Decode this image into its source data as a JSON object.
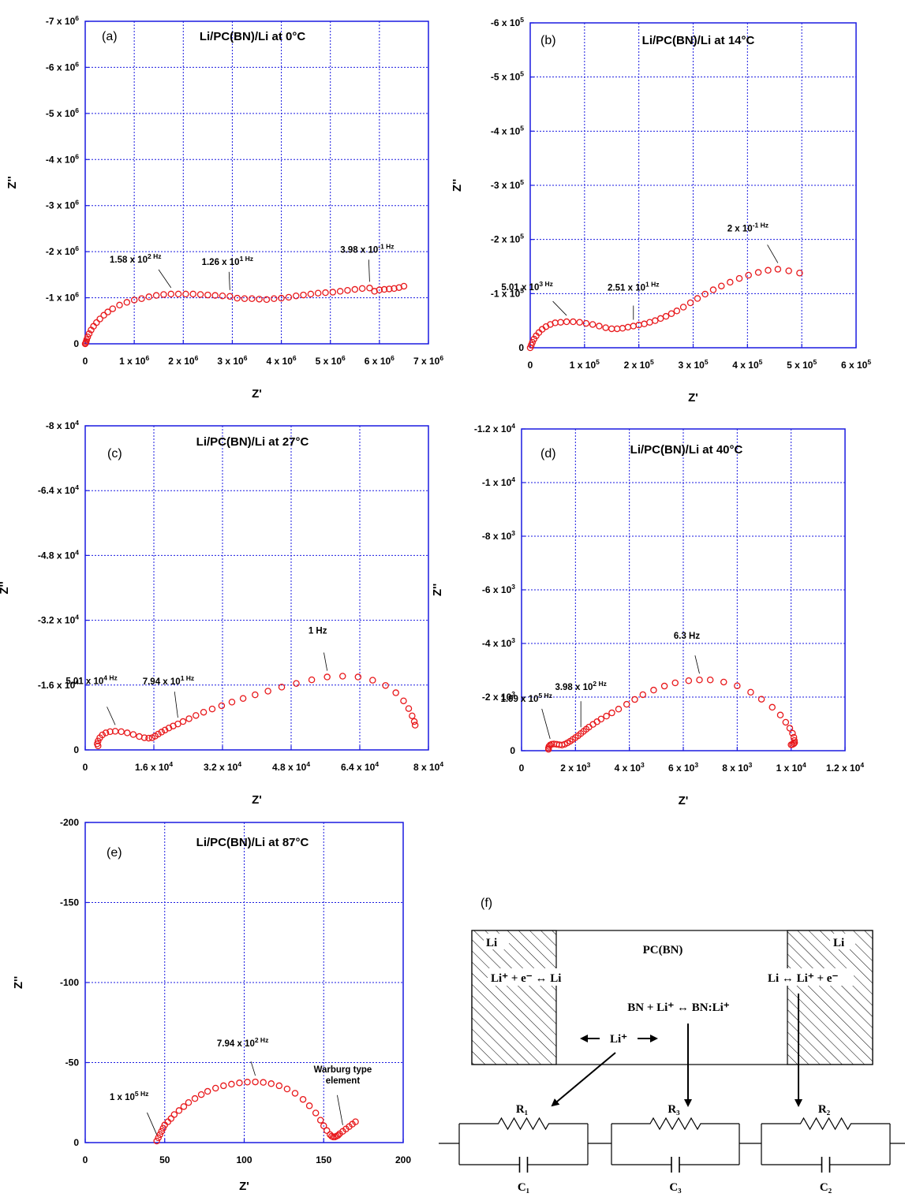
{
  "chart_data": [
    {
      "type": "scatter",
      "panel_label": "(a)",
      "title": "Li/PC(BN)/Li at 0°C",
      "xlabel": "Z'",
      "ylabel": "Z''",
      "xlim": [
        0,
        7000000
      ],
      "ylim": [
        0,
        -7000000
      ],
      "grid": true,
      "x_ticks": [
        0,
        1000000,
        2000000,
        3000000,
        4000000,
        5000000,
        6000000,
        7000000
      ],
      "x_tick_labels": [
        "0",
        "1 x 10^6",
        "2 x 10^6",
        "3 x 10^6",
        "4 x 10^6",
        "5 x 10^6",
        "6 x 10^6",
        "7 x 10^6"
      ],
      "y_ticks": [
        0,
        -1000000,
        -2000000,
        -3000000,
        -4000000,
        -5000000,
        -6000000,
        -7000000
      ],
      "y_tick_labels": [
        "0",
        "-1 x 10^6",
        "-2 x 10^6",
        "-3 x 10^6",
        "-4 x 10^6",
        "-5 x 10^6",
        "-6 x 10^6",
        "-7 x 10^6"
      ],
      "series": [
        {
          "marker": "open-circle",
          "color": "#e8191c",
          "x": [
            0,
            10000,
            20000,
            30000,
            50000,
            80000,
            120000,
            170000,
            230000,
            300000,
            380000,
            460000,
            560000,
            700000,
            850000,
            1000000,
            1150000,
            1300000,
            1450000,
            1600000,
            1750000,
            1900000,
            2050000,
            2200000,
            2350000,
            2500000,
            2650000,
            2800000,
            2950000,
            3100000,
            3250000,
            3400000,
            3550000,
            3700000,
            3850000,
            4000000,
            4150000,
            4300000,
            4450000,
            4600000,
            4750000,
            4900000,
            5050000,
            5200000,
            5350000,
            5500000,
            5650000,
            5800000,
            5900000,
            6000000,
            6100000,
            6200000,
            6300000,
            6400000,
            6500000
          ],
          "y": [
            0,
            -20000,
            -50000,
            -90000,
            -150000,
            -220000,
            -300000,
            -380000,
            -460000,
            -540000,
            -620000,
            -690000,
            -760000,
            -840000,
            -900000,
            -950000,
            -980000,
            -1020000,
            -1050000,
            -1070000,
            -1080000,
            -1080000,
            -1080000,
            -1080000,
            -1070000,
            -1060000,
            -1050000,
            -1040000,
            -1030000,
            -990000,
            -980000,
            -980000,
            -970000,
            -960000,
            -980000,
            -990000,
            -1010000,
            -1040000,
            -1060000,
            -1080000,
            -1100000,
            -1110000,
            -1120000,
            -1140000,
            -1160000,
            -1180000,
            -1200000,
            -1210000,
            -1140000,
            -1170000,
            -1180000,
            -1190000,
            -1200000,
            -1220000,
            -1250000
          ]
        }
      ],
      "annotations": [
        {
          "text": "1.58 x 10^2 Hz",
          "x": 1700000
        },
        {
          "text": "1.26 x 10^1 Hz",
          "x": 2900000
        },
        {
          "text": "3.98 x 10^-1 Hz",
          "x": 5800000
        }
      ]
    },
    {
      "type": "scatter",
      "panel_label": "(b)",
      "title": "Li/PC(BN)/Li at 14°C",
      "xlabel": "Z'",
      "ylabel": "Z''",
      "xlim": [
        0,
        600000
      ],
      "ylim": [
        0,
        -600000
      ],
      "grid": true,
      "x_ticks": [
        0,
        100000,
        200000,
        300000,
        400000,
        500000,
        600000
      ],
      "x_tick_labels": [
        "0",
        "1 x 10^5",
        "2 x 10^5",
        "3 x 10^5",
        "4 x 10^5",
        "5 x 10^5",
        "6 x 10^5"
      ],
      "y_ticks": [
        0,
        -100000,
        -200000,
        -300000,
        -400000,
        -500000,
        -600000
      ],
      "y_tick_labels": [
        "0",
        "-1 x 10^5",
        "-2 x 10^5",
        "-3 x 10^5",
        "-4 x 10^5",
        "-5 x 10^5",
        "-6 x 10^5"
      ],
      "series": [
        {
          "marker": "open-circle",
          "color": "#e8191c",
          "x": [
            0,
            2000,
            4000,
            7000,
            11000,
            16000,
            22000,
            29000,
            37000,
            46000,
            56000,
            67000,
            79000,
            91000,
            103000,
            115000,
            127000,
            139000,
            150000,
            160000,
            170000,
            180000,
            190000,
            200000,
            210000,
            220000,
            230000,
            240000,
            250000,
            260000,
            270000,
            282000,
            295000,
            308000,
            322000,
            337000,
            352000,
            368000,
            385000,
            402000,
            420000,
            438000,
            456000,
            476000,
            496000
          ],
          "y": [
            0,
            -5000,
            -10000,
            -16000,
            -22000,
            -28000,
            -34000,
            -39000,
            -43000,
            -46000,
            -47000,
            -48000,
            -48000,
            -47000,
            -45000,
            -43000,
            -40000,
            -37000,
            -35000,
            -35000,
            -36000,
            -38000,
            -40000,
            -42000,
            -44000,
            -47000,
            -50000,
            -54000,
            -58000,
            -63000,
            -68000,
            -75000,
            -83000,
            -91000,
            -99000,
            -107000,
            -114000,
            -121000,
            -128000,
            -134000,
            -139000,
            -143000,
            -145000,
            -142000,
            -138000
          ]
        }
      ],
      "annotations": [
        {
          "text": "5.01 x 10^3 Hz",
          "x": 66000
        },
        {
          "text": "2.51 x 10^1 Hz",
          "x": 195000
        },
        {
          "text": "2 x 10^-1 Hz",
          "x": 456000
        }
      ]
    },
    {
      "type": "scatter",
      "panel_label": "(c)",
      "title": "Li/PC(BN)/Li at 27°C",
      "xlabel": "Z'",
      "ylabel": "Z''",
      "xlim": [
        0,
        80000
      ],
      "ylim": [
        0,
        -80000
      ],
      "grid": true,
      "x_ticks": [
        0,
        16000,
        32000,
        48000,
        64000,
        80000
      ],
      "x_tick_labels": [
        "0",
        "1.6 x 10^4",
        "3.2 x 10^4",
        "4.8 x 10^4",
        "6.4 x 10^4",
        "8 x 10^4"
      ],
      "y_ticks": [
        0,
        -16000,
        -32000,
        -48000,
        -64000,
        -80000
      ],
      "y_tick_labels": [
        "0",
        "-1.6 x 10^4",
        "-3.2 x 10^4",
        "-4.8 x 10^4",
        "-6.4 x 10^4",
        "-8 x 10^4"
      ],
      "series": [
        {
          "marker": "open-circle",
          "color": "#e8191c",
          "x": [
            3000,
            2800,
            3000,
            3400,
            4000,
            4800,
            5800,
            7000,
            8400,
            9800,
            11200,
            12600,
            13800,
            14800,
            15600,
            16300,
            17000,
            17800,
            18600,
            19500,
            20500,
            21600,
            22800,
            24200,
            25800,
            27600,
            29600,
            31800,
            34200,
            36800,
            39600,
            42600,
            45800,
            49200,
            52800,
            56400,
            60000,
            63600,
            67000,
            70000,
            72400,
            74200,
            75400,
            76200,
            76700,
            76900
          ],
          "y": [
            -1000,
            -1500,
            -2200,
            -3000,
            -3700,
            -4200,
            -4500,
            -4600,
            -4500,
            -4200,
            -3800,
            -3300,
            -3000,
            -2900,
            -3000,
            -3400,
            -3900,
            -4400,
            -4900,
            -5400,
            -5900,
            -6400,
            -7000,
            -7700,
            -8500,
            -9300,
            -10100,
            -10900,
            -11800,
            -12700,
            -13600,
            -14500,
            -15500,
            -16400,
            -17300,
            -18000,
            -18200,
            -18000,
            -17200,
            -15900,
            -14100,
            -12100,
            -10200,
            -8400,
            -7000,
            -6100
          ]
        }
      ],
      "annotations": [
        {
          "text": "5.01 x 10^4 Hz",
          "x": 7200
        },
        {
          "text": "7.94 x 10^1 Hz",
          "x": 22000
        },
        {
          "text": "1 Hz",
          "x": 56500
        }
      ]
    },
    {
      "type": "scatter",
      "panel_label": "(d)",
      "title": "Li/PC(BN)/Li at 40°C",
      "xlabel": "Z'",
      "ylabel": "Z''",
      "xlim": [
        0,
        12000
      ],
      "ylim": [
        0,
        -12000
      ],
      "grid": true,
      "x_ticks": [
        0,
        2000,
        4000,
        6000,
        8000,
        10000,
        12000
      ],
      "x_tick_labels": [
        "0",
        "2 x 10^3",
        "4 x 10^3",
        "6 x 10^3",
        "8 x 10^3",
        "1 x 10^4",
        "1.2 x 10^4"
      ],
      "y_ticks": [
        0,
        -2000,
        -4000,
        -6000,
        -8000,
        -10000,
        -12000
      ],
      "y_tick_labels": [
        "0",
        "-2 x 10^3",
        "-4 x 10^3",
        "-6 x 10^3",
        "-8 x 10^3",
        "-1 x 10^4",
        "-1.2 x 10^4"
      ],
      "series": [
        {
          "marker": "open-circle",
          "color": "#e8191c",
          "x": [
            1000,
            1000,
            1020,
            1060,
            1120,
            1200,
            1300,
            1400,
            1500,
            1600,
            1700,
            1800,
            1900,
            2000,
            2100,
            2200,
            2300,
            2400,
            2500,
            2650,
            2800,
            2950,
            3150,
            3350,
            3600,
            3900,
            4200,
            4500,
            4900,
            5300,
            5700,
            6200,
            6600,
            7000,
            7500,
            8000,
            8500,
            8900,
            9300,
            9600,
            9800,
            9950,
            10050,
            10100,
            10120,
            10130,
            10100,
            10050,
            10000
          ],
          "y": [
            -50,
            -100,
            -160,
            -210,
            -240,
            -250,
            -240,
            -220,
            -210,
            -240,
            -290,
            -350,
            -420,
            -490,
            -560,
            -640,
            -720,
            -800,
            -880,
            -980,
            -1080,
            -1180,
            -1290,
            -1410,
            -1550,
            -1730,
            -1910,
            -2090,
            -2260,
            -2410,
            -2530,
            -2610,
            -2640,
            -2640,
            -2560,
            -2420,
            -2180,
            -1920,
            -1620,
            -1330,
            -1060,
            -840,
            -650,
            -500,
            -380,
            -300,
            -260,
            -230,
            -220
          ]
        }
      ],
      "annotations": [
        {
          "text": "1.99 x 10^5 Hz",
          "x": 1050
        },
        {
          "text": "3.98 x 10^2 Hz",
          "x": 2200
        },
        {
          "text": "6.3 Hz",
          "x": 6600
        }
      ]
    },
    {
      "type": "scatter",
      "panel_label": "(e)",
      "title": "Li/PC(BN)/Li at 87°C",
      "xlabel": "Z'",
      "ylabel": "Z''",
      "xlim": [
        0,
        200
      ],
      "ylim": [
        0,
        -200
      ],
      "grid": true,
      "x_ticks": [
        0,
        50,
        100,
        150,
        200
      ],
      "x_tick_labels": [
        "0",
        "50",
        "100",
        "150",
        "200"
      ],
      "y_ticks": [
        0,
        -50,
        -100,
        -150,
        -200
      ],
      "y_tick_labels": [
        "0",
        "-50",
        "-100",
        "-150",
        "-200"
      ],
      "series": [
        {
          "marker": "open-circle",
          "color": "#e8191c",
          "x": [
            45,
            46,
            47,
            48,
            49,
            50,
            52,
            54,
            56,
            59,
            62,
            65,
            69,
            73,
            77,
            82,
            87,
            92,
            97,
            102,
            107,
            112,
            117,
            122,
            127,
            132,
            137,
            141,
            145,
            148,
            150,
            152,
            154,
            155,
            156,
            157,
            158,
            159,
            160,
            162,
            164,
            166,
            168,
            170
          ],
          "y": [
            -1,
            -3,
            -5,
            -7,
            -9,
            -11,
            -13,
            -15,
            -17.5,
            -20,
            -22.5,
            -25,
            -27.5,
            -30,
            -32,
            -34,
            -35.5,
            -36.5,
            -37.3,
            -37.8,
            -37.9,
            -37.6,
            -36.8,
            -35.5,
            -33.5,
            -30.8,
            -27,
            -23,
            -18.5,
            -14,
            -10.5,
            -7.5,
            -5,
            -4,
            -3.5,
            -3.5,
            -4,
            -4.5,
            -5.5,
            -7,
            -8.5,
            -10,
            -11.5,
            -13
          ]
        }
      ],
      "annotations": [
        {
          "text": "1 x 10^5 Hz",
          "x": 45
        },
        {
          "text": "7.94 x 10^2 Hz",
          "x": 108
        },
        {
          "text": "Warburg type element",
          "x": 163
        }
      ]
    }
  ],
  "schematic": {
    "panel_label": "(f)",
    "left_electrode": "Li",
    "right_electrode": "Li",
    "electrolyte": "PC(BN)",
    "left_reaction": "Li⁺ + e⁻ ↔ Li",
    "right_reaction": "Li ↔ Li⁺ + e⁻",
    "middle_reaction": "BN + Li⁺ ↔ BN:Li⁺",
    "ion_label": "Li⁺",
    "resistors": [
      "R₁",
      "R₃",
      "R₂"
    ],
    "capacitors": [
      "C₁",
      "C₃",
      "C₂"
    ]
  },
  "style": {
    "frame_color": "#1a1ae0",
    "grid_color": "#1a1ae0",
    "marker_color": "#e8191c"
  }
}
